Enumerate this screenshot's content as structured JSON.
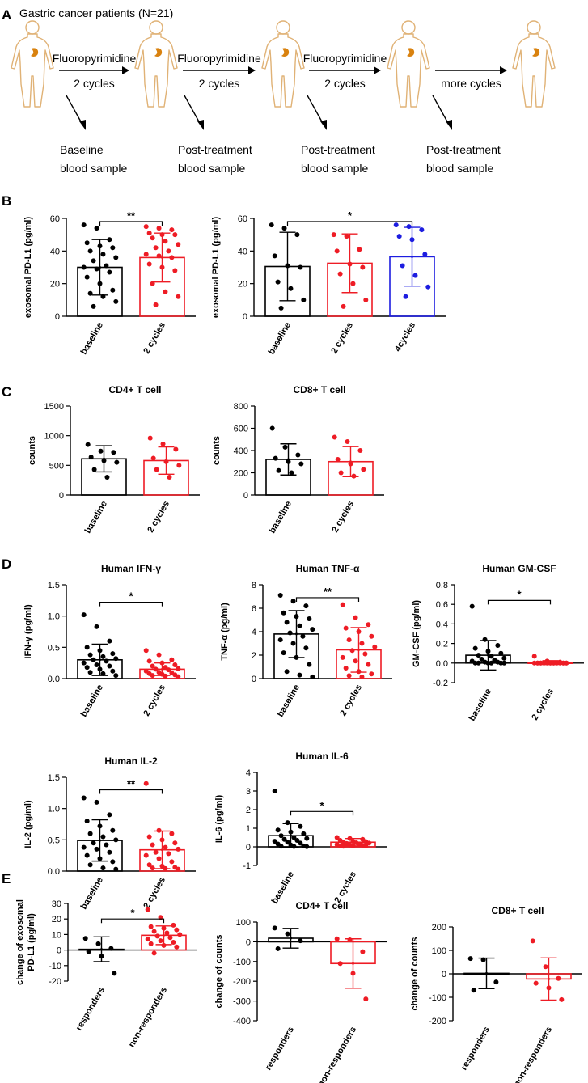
{
  "figure": {
    "panel_letters": [
      "A",
      "B",
      "C",
      "D",
      "E"
    ],
    "colors": {
      "black": "#000000",
      "red": "#ee1c25",
      "blue": "#1d1de0",
      "organ": "#d9820f",
      "body_outline": "#e0b276"
    }
  },
  "panel_a": {
    "title": "Gastric cancer patients (N=21)",
    "arrows": [
      {
        "top": "Fluoropyrimidine",
        "bottom": "2 cycles"
      },
      {
        "top": "Fluoropyrimidine",
        "bottom": "2 cycles"
      },
      {
        "top": "Fluoropyrimidine",
        "bottom": "2 cycles"
      },
      {
        "top": "",
        "bottom": "more cycles"
      }
    ],
    "samples": [
      {
        "line1": "Baseline",
        "line2": "blood sample"
      },
      {
        "line1": "Post-treatment",
        "line2": "blood sample"
      },
      {
        "line1": "Post-treatment",
        "line2": "blood sample"
      },
      {
        "line1": "Post-treatment",
        "line2": "blood sample"
      }
    ]
  },
  "chart_data": [
    {
      "id": "B1",
      "panel": "B",
      "type": "bar",
      "title": "",
      "ylabel": "exosomal PD-L1 (pg/ml)",
      "ylim": [
        0,
        60
      ],
      "yticks": [
        0,
        20,
        40,
        60
      ],
      "categories": [
        "baseline",
        "2 cycles"
      ],
      "colors": [
        "black",
        "red"
      ],
      "means": [
        30,
        36
      ],
      "sd": [
        17,
        15
      ],
      "points": [
        [
          56,
          54,
          47,
          45,
          43,
          42,
          40,
          38,
          36,
          34,
          31,
          30,
          29,
          27,
          24,
          20,
          16,
          14,
          12,
          9,
          6
        ],
        [
          55,
          54,
          53,
          51,
          50,
          50,
          48,
          46,
          44,
          42,
          40,
          38,
          37,
          36,
          32,
          30,
          28,
          20,
          15,
          12,
          7
        ]
      ],
      "sig": [
        {
          "from": 0,
          "to": 1,
          "label": "**",
          "y": 58
        }
      ]
    },
    {
      "id": "B2",
      "panel": "B",
      "type": "bar",
      "title": "",
      "ylabel": "exosomal PD-L1 (pg/ml)",
      "ylim": [
        0,
        60
      ],
      "yticks": [
        0,
        20,
        40,
        60
      ],
      "categories": [
        "baseline",
        "2 cycles",
        "4cycles"
      ],
      "colors": [
        "black",
        "red",
        "blue"
      ],
      "means": [
        30.5,
        32.5,
        36.5
      ],
      "sd": [
        21,
        18,
        18
      ],
      "points": [
        [
          56,
          54,
          50,
          37,
          31,
          30,
          21,
          17,
          10,
          5
        ],
        [
          50,
          49,
          41,
          40,
          32,
          30,
          26,
          20,
          10,
          6
        ],
        [
          56,
          55,
          53,
          49,
          47,
          38,
          31,
          25,
          18,
          12
        ]
      ],
      "sig": [
        {
          "from": 0,
          "to": 2,
          "label": "*",
          "y": 58
        }
      ]
    },
    {
      "id": "C1",
      "panel": "C",
      "type": "bar",
      "title": "CD4+ T cell",
      "ylabel": "counts",
      "ylim": [
        0,
        1500
      ],
      "yticks": [
        0,
        500,
        1000,
        1500
      ],
      "categories": [
        "baseline",
        "2 cycles"
      ],
      "colors": [
        "black",
        "red"
      ],
      "means": [
        610,
        580
      ],
      "sd": [
        220,
        230
      ],
      "points": [
        [
          850,
          740,
          720,
          640,
          580,
          550,
          430,
          300
        ],
        [
          960,
          860,
          770,
          620,
          560,
          500,
          430,
          300
        ]
      ],
      "sig": []
    },
    {
      "id": "C2",
      "panel": "C",
      "type": "bar",
      "title": "CD8+ T cell",
      "ylabel": "counts",
      "ylim": [
        0,
        800
      ],
      "yticks": [
        0,
        200,
        400,
        600,
        800
      ],
      "categories": [
        "baseline",
        "2 cycles"
      ],
      "colors": [
        "black",
        "red"
      ],
      "means": [
        320,
        300
      ],
      "sd": [
        140,
        135
      ],
      "points": [
        [
          600,
          430,
          360,
          330,
          300,
          280,
          220,
          200
        ],
        [
          520,
          480,
          400,
          320,
          280,
          230,
          200,
          170
        ]
      ],
      "sig": []
    },
    {
      "id": "D1",
      "panel": "D",
      "type": "bar",
      "title": "Human IFN-γ",
      "ylabel": "IFN-γ (pg/ml)",
      "ylim": [
        0,
        1.5
      ],
      "yticks": [
        0,
        0.5,
        1.0,
        1.5
      ],
      "ytick_labels": [
        "0.0",
        "0.5",
        "1.0",
        "1.5"
      ],
      "categories": [
        "baseline",
        "2 cycles"
      ],
      "colors": [
        "black",
        "red"
      ],
      "means": [
        0.3,
        0.15
      ],
      "sd": [
        0.25,
        0.1
      ],
      "points": [
        [
          1.02,
          0.83,
          0.6,
          0.5,
          0.45,
          0.4,
          0.38,
          0.35,
          0.32,
          0.3,
          0.28,
          0.25,
          0.22,
          0.2,
          0.18,
          0.15,
          0.12,
          0.1,
          0.08,
          0.05
        ],
        [
          0.45,
          0.38,
          0.3,
          0.28,
          0.25,
          0.22,
          0.2,
          0.18,
          0.16,
          0.15,
          0.14,
          0.12,
          0.1,
          0.09,
          0.08,
          0.07,
          0.06,
          0.05,
          0.04,
          0.03
        ]
      ],
      "sig": [
        {
          "from": 0,
          "to": 1,
          "label": "*",
          "y": 1.22
        }
      ]
    },
    {
      "id": "D2",
      "panel": "D",
      "type": "bar",
      "title": "Human TNF-α",
      "ylabel": "TNF-α (pg/ml)",
      "ylim": [
        0,
        8
      ],
      "yticks": [
        0,
        2,
        4,
        6,
        8
      ],
      "categories": [
        "baseline",
        "2 cycles"
      ],
      "colors": [
        "black",
        "red"
      ],
      "means": [
        3.8,
        2.45
      ],
      "sd": [
        2.0,
        1.9
      ],
      "points": [
        [
          7.1,
          6.6,
          6.2,
          5.6,
          5.3,
          5.1,
          4.8,
          4.5,
          4.2,
          3.9,
          3.6,
          3.3,
          3.0,
          2.6,
          2.2,
          1.8,
          1.2,
          0.6,
          0.3,
          0.15
        ],
        [
          6.3,
          5.2,
          4.6,
          4.3,
          4.0,
          3.6,
          3.3,
          3.0,
          2.7,
          2.4,
          2.1,
          1.8,
          1.5,
          1.2,
          0.9,
          0.6,
          0.4,
          0.25,
          0.15
        ]
      ],
      "sig": [
        {
          "from": 0,
          "to": 1,
          "label": "**",
          "y": 6.9
        }
      ]
    },
    {
      "id": "D3",
      "panel": "D",
      "type": "bar",
      "title": "Human GM-CSF",
      "ylabel": "GM-CSF (pg/ml)",
      "ylim": [
        -0.2,
        0.8
      ],
      "yticks": [
        -0.2,
        0,
        0.2,
        0.4,
        0.6,
        0.8
      ],
      "ytick_labels": [
        "-0.2",
        "0.0",
        "0.2",
        "0.4",
        "0.6",
        "0.8"
      ],
      "categories": [
        "baseline",
        "2 cycles"
      ],
      "colors": [
        "black",
        "red"
      ],
      "means": [
        0.08,
        0.005
      ],
      "sd": [
        0.15,
        0.02
      ],
      "points": [
        [
          0.58,
          0.24,
          0.18,
          0.15,
          0.12,
          0.1,
          0.08,
          0.07,
          0.05,
          0.04,
          0.03,
          0.02,
          0.01,
          0.01,
          0.0,
          0.0,
          0.0,
          0.0,
          0.0,
          0.0
        ],
        [
          0.07,
          0.02,
          0.01,
          0.0,
          0.0,
          0.0,
          0.0,
          0.0,
          0.0,
          0.0,
          0.0,
          0.0,
          0.0,
          0.0,
          0.0,
          0.0,
          0.0,
          0.0,
          0.0,
          0.0
        ]
      ],
      "sig": [
        {
          "from": 0,
          "to": 1,
          "label": "*",
          "y": 0.64
        }
      ]
    },
    {
      "id": "D4",
      "panel": "D",
      "type": "bar",
      "title": "Human IL-2",
      "ylabel": "IL-2 (pg/ml)",
      "ylim": [
        0,
        1.5
      ],
      "yticks": [
        0,
        0.5,
        1.0,
        1.5
      ],
      "ytick_labels": [
        "0.0",
        "0.5",
        "1.0",
        "1.5"
      ],
      "categories": [
        "baseline",
        "2 cycles"
      ],
      "colors": [
        "black",
        "red"
      ],
      "means": [
        0.49,
        0.34
      ],
      "sd": [
        0.33,
        0.3
      ],
      "points": [
        [
          1.17,
          1.1,
          0.9,
          0.8,
          0.72,
          0.65,
          0.6,
          0.55,
          0.5,
          0.45,
          0.42,
          0.38,
          0.35,
          0.3,
          0.25,
          0.2,
          0.15,
          0.1,
          0.05,
          0.03
        ],
        [
          1.4,
          0.65,
          0.6,
          0.55,
          0.5,
          0.45,
          0.42,
          0.38,
          0.35,
          0.3,
          0.28,
          0.25,
          0.2,
          0.15,
          0.1,
          0.08,
          0.06,
          0.05,
          0.04,
          0.03
        ]
      ],
      "sig": [
        {
          "from": 0,
          "to": 1,
          "label": "**",
          "y": 1.3
        }
      ]
    },
    {
      "id": "D5",
      "panel": "D",
      "type": "bar",
      "title": "Human IL-6",
      "ylabel": "IL-6 (pg/ml)",
      "ylim": [
        -1,
        4
      ],
      "yticks": [
        -1,
        0,
        1,
        2,
        3,
        4
      ],
      "categories": [
        "baseline",
        "2 cycles"
      ],
      "colors": [
        "black",
        "red"
      ],
      "means": [
        0.6,
        0.25
      ],
      "sd": [
        0.65,
        0.2
      ],
      "points": [
        [
          3.0,
          1.3,
          1.1,
          0.9,
          0.8,
          0.7,
          0.6,
          0.5,
          0.45,
          0.4,
          0.35,
          0.3,
          0.25,
          0.2,
          0.15,
          0.1,
          0.05,
          0.03,
          0.02,
          0.01
        ],
        [
          0.5,
          0.45,
          0.4,
          0.35,
          0.3,
          0.28,
          0.25,
          0.22,
          0.2,
          0.18,
          0.15,
          0.12,
          0.1,
          0.08,
          0.06,
          0.05,
          0.04,
          0.03
        ]
      ],
      "sig": [
        {
          "from": 0,
          "to": 1,
          "label": "*",
          "y": 1.9
        }
      ]
    },
    {
      "id": "E1",
      "panel": "E",
      "type": "bar",
      "title": "",
      "ylabel": "change of exosomal PD-L1 (pg/ml)",
      "ylabel_lines": [
        "change of exosomal",
        "PD-L1 (pg/ml)"
      ],
      "ylim": [
        -20,
        30
      ],
      "yticks": [
        -20,
        -10,
        0,
        10,
        20,
        30
      ],
      "categories": [
        "responders",
        "non-responders"
      ],
      "colors": [
        "black",
        "red"
      ],
      "means": [
        0.5,
        9.5
      ],
      "sd": [
        8,
        6
      ],
      "points": [
        [
          7.5,
          4,
          1,
          -1,
          -4,
          -15
        ],
        [
          26,
          21,
          16,
          15,
          14,
          13,
          12,
          11,
          10,
          9,
          8,
          7,
          6,
          5,
          4,
          3,
          2,
          -2
        ]
      ],
      "sig": [
        {
          "from": 0,
          "to": 1,
          "label": "*",
          "y": 20
        }
      ]
    },
    {
      "id": "E2",
      "panel": "E",
      "type": "bar",
      "title": "CD4+ T cell",
      "ylabel": "change of counts",
      "ylim": [
        -400,
        100
      ],
      "yticks": [
        -400,
        -300,
        -200,
        -100,
        0,
        100
      ],
      "categories": [
        "responders",
        "non-responders"
      ],
      "colors": [
        "black",
        "red"
      ],
      "means": [
        18,
        -110
      ],
      "sd": [
        50,
        125
      ],
      "points": [
        [
          70,
          40,
          5,
          -35
        ],
        [
          15,
          10,
          -50,
          -110,
          -160,
          -290
        ]
      ],
      "sig": []
    },
    {
      "id": "E3",
      "panel": "E",
      "type": "bar",
      "title": "CD8+ T cell",
      "ylabel": "change of counts",
      "ylim": [
        -200,
        200
      ],
      "yticks": [
        -200,
        -100,
        0,
        100,
        200
      ],
      "categories": [
        "responders",
        "non-responders"
      ],
      "colors": [
        "black",
        "red"
      ],
      "means": [
        2,
        -22
      ],
      "sd": [
        65,
        90
      ],
      "points": [
        [
          65,
          60,
          -35,
          -70
        ],
        [
          140,
          30,
          -20,
          -40,
          -60,
          -110
        ]
      ],
      "sig": []
    }
  ]
}
